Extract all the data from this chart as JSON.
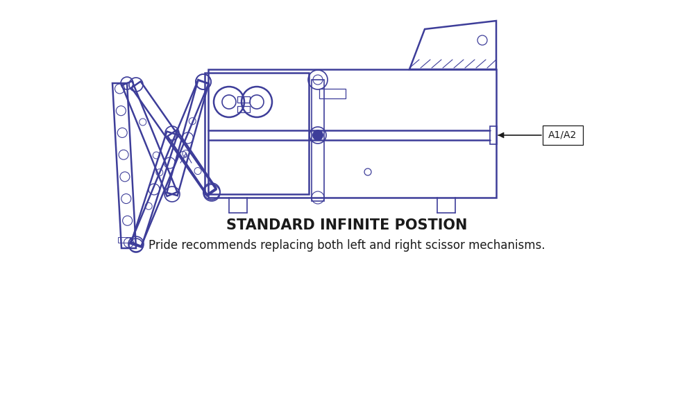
{
  "title": "STANDARD INFINITE POSTION",
  "subtitle": "Pride recommends replacing both left and right scissor mechanisms.",
  "label_a1a2": "A1/A2",
  "draw_color": "#3d3d99",
  "text_color": "#1a1a1a",
  "bg_color": "#ffffff",
  "title_fontsize": 15,
  "subtitle_fontsize": 12,
  "label_fontsize": 10,
  "fig_width": 10,
  "fig_height": 6
}
